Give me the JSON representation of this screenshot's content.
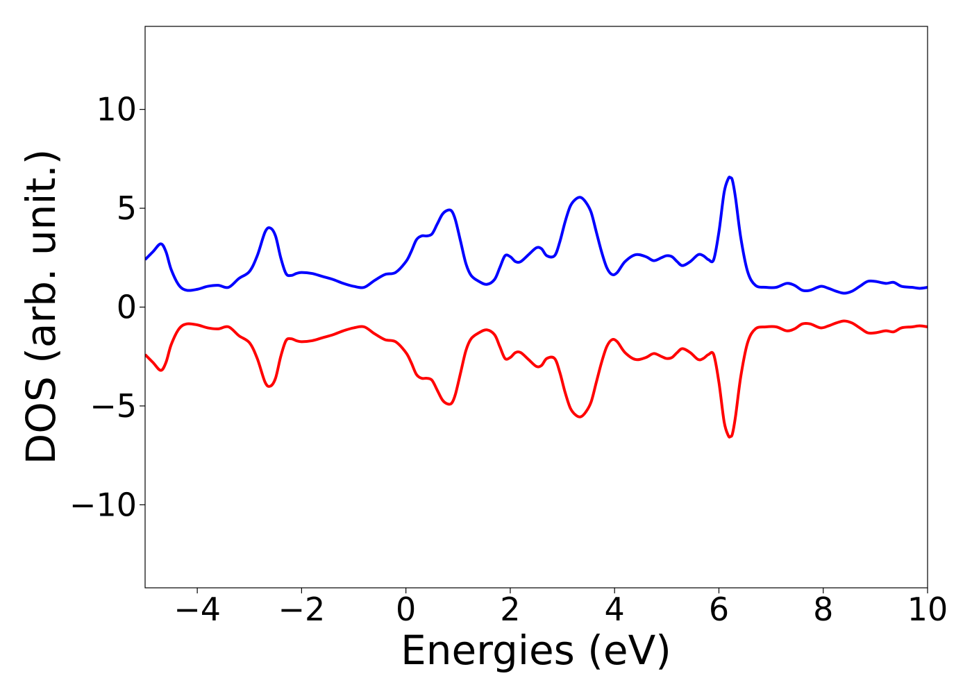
{
  "chart_data": {
    "type": "line",
    "title": "",
    "xlabel": "Energies (eV)",
    "ylabel": "DOS (arb. unit.)",
    "xlim": [
      -5,
      10
    ],
    "ylim": [
      -14.2,
      14.2
    ],
    "grid": false,
    "legend": "none",
    "x_ticks": [
      {
        "value": -4,
        "label": "−4"
      },
      {
        "value": -2,
        "label": "−2"
      },
      {
        "value": 0,
        "label": "0"
      },
      {
        "value": 2,
        "label": "2"
      },
      {
        "value": 4,
        "label": "4"
      },
      {
        "value": 6,
        "label": "6"
      },
      {
        "value": 8,
        "label": "8"
      },
      {
        "value": 10,
        "label": "10"
      }
    ],
    "y_ticks": [
      {
        "value": 10,
        "label": "10"
      },
      {
        "value": 5,
        "label": "5"
      },
      {
        "value": 0,
        "label": "0"
      },
      {
        "value": -5,
        "label": "−5"
      },
      {
        "value": -10,
        "label": "−10"
      }
    ],
    "series": [
      {
        "color": "#0000ff",
        "x": [
          -5.0,
          -4.85,
          -4.7,
          -4.6,
          -4.5,
          -4.35,
          -4.2,
          -4.0,
          -3.8,
          -3.6,
          -3.4,
          -3.2,
          -3.0,
          -2.85,
          -2.7,
          -2.6,
          -2.5,
          -2.4,
          -2.3,
          -2.2,
          -2.1,
          -2.0,
          -1.8,
          -1.6,
          -1.4,
          -1.2,
          -1.0,
          -0.8,
          -0.6,
          -0.4,
          -0.2,
          0.0,
          0.1,
          0.2,
          0.3,
          0.4,
          0.5,
          0.6,
          0.7,
          0.8,
          0.88,
          0.95,
          1.05,
          1.15,
          1.25,
          1.4,
          1.55,
          1.7,
          1.8,
          1.9,
          2.0,
          2.1,
          2.2,
          2.35,
          2.5,
          2.6,
          2.7,
          2.85,
          2.95,
          3.05,
          3.15,
          3.25,
          3.35,
          3.45,
          3.55,
          3.65,
          3.75,
          3.85,
          3.95,
          4.05,
          4.2,
          4.4,
          4.6,
          4.75,
          4.9,
          5.0,
          5.1,
          5.2,
          5.3,
          5.45,
          5.6,
          5.7,
          5.8,
          5.9,
          6.0,
          6.1,
          6.18,
          6.22,
          6.26,
          6.32,
          6.42,
          6.55,
          6.7,
          6.9,
          7.1,
          7.3,
          7.45,
          7.6,
          7.75,
          7.95,
          8.1,
          8.25,
          8.4,
          8.55,
          8.7,
          8.85,
          9.0,
          9.2,
          9.35,
          9.5,
          9.7,
          9.85,
          10.0
        ],
        "y": [
          2.4,
          2.8,
          3.2,
          2.8,
          1.9,
          1.1,
          0.85,
          0.9,
          1.05,
          1.1,
          1.0,
          1.45,
          1.8,
          2.6,
          3.8,
          4.0,
          3.6,
          2.5,
          1.7,
          1.6,
          1.7,
          1.75,
          1.7,
          1.55,
          1.4,
          1.2,
          1.05,
          1.0,
          1.35,
          1.65,
          1.75,
          2.3,
          2.8,
          3.4,
          3.6,
          3.6,
          3.7,
          4.2,
          4.7,
          4.9,
          4.85,
          4.4,
          3.3,
          2.2,
          1.6,
          1.3,
          1.15,
          1.4,
          2.0,
          2.6,
          2.55,
          2.3,
          2.3,
          2.65,
          3.0,
          2.95,
          2.6,
          2.6,
          3.3,
          4.3,
          5.1,
          5.45,
          5.55,
          5.3,
          4.8,
          3.8,
          2.8,
          2.0,
          1.65,
          1.75,
          2.3,
          2.65,
          2.55,
          2.35,
          2.5,
          2.6,
          2.55,
          2.3,
          2.1,
          2.3,
          2.65,
          2.6,
          2.4,
          2.4,
          3.8,
          5.8,
          6.5,
          6.55,
          6.4,
          5.5,
          3.5,
          1.8,
          1.1,
          1.0,
          1.0,
          1.2,
          1.1,
          0.85,
          0.85,
          1.05,
          0.95,
          0.8,
          0.7,
          0.8,
          1.05,
          1.3,
          1.3,
          1.2,
          1.25,
          1.05,
          1.0,
          0.95,
          1.0
        ]
      },
      {
        "color": "#ff0000",
        "x": [
          -5.0,
          -4.85,
          -4.7,
          -4.6,
          -4.5,
          -4.35,
          -4.2,
          -4.0,
          -3.8,
          -3.6,
          -3.4,
          -3.2,
          -3.0,
          -2.85,
          -2.7,
          -2.6,
          -2.5,
          -2.4,
          -2.3,
          -2.2,
          -2.1,
          -2.0,
          -1.8,
          -1.6,
          -1.4,
          -1.2,
          -1.0,
          -0.8,
          -0.6,
          -0.4,
          -0.2,
          0.0,
          0.1,
          0.2,
          0.3,
          0.4,
          0.5,
          0.6,
          0.7,
          0.8,
          0.88,
          0.95,
          1.05,
          1.15,
          1.25,
          1.4,
          1.55,
          1.7,
          1.8,
          1.9,
          2.0,
          2.1,
          2.2,
          2.35,
          2.5,
          2.6,
          2.7,
          2.85,
          2.95,
          3.05,
          3.15,
          3.25,
          3.35,
          3.45,
          3.55,
          3.65,
          3.75,
          3.85,
          3.95,
          4.05,
          4.2,
          4.4,
          4.6,
          4.75,
          4.9,
          5.0,
          5.1,
          5.2,
          5.3,
          5.45,
          5.6,
          5.7,
          5.8,
          5.9,
          6.0,
          6.1,
          6.18,
          6.22,
          6.26,
          6.32,
          6.42,
          6.55,
          6.7,
          6.9,
          7.1,
          7.3,
          7.45,
          7.6,
          7.75,
          7.95,
          8.1,
          8.25,
          8.4,
          8.55,
          8.7,
          8.85,
          9.0,
          9.2,
          9.35,
          9.5,
          9.7,
          9.85,
          10.0
        ],
        "y": [
          -2.4,
          -2.8,
          -3.2,
          -2.8,
          -1.9,
          -1.1,
          -0.85,
          -0.9,
          -1.05,
          -1.1,
          -1.0,
          -1.45,
          -1.8,
          -2.6,
          -3.8,
          -4.0,
          -3.6,
          -2.5,
          -1.7,
          -1.6,
          -1.7,
          -1.75,
          -1.7,
          -1.55,
          -1.4,
          -1.2,
          -1.05,
          -1.0,
          -1.35,
          -1.65,
          -1.75,
          -2.3,
          -2.8,
          -3.4,
          -3.6,
          -3.6,
          -3.7,
          -4.2,
          -4.7,
          -4.9,
          -4.85,
          -4.4,
          -3.3,
          -2.2,
          -1.6,
          -1.3,
          -1.15,
          -1.4,
          -2.0,
          -2.6,
          -2.55,
          -2.3,
          -2.3,
          -2.65,
          -3.0,
          -2.95,
          -2.6,
          -2.6,
          -3.3,
          -4.3,
          -5.1,
          -5.45,
          -5.55,
          -5.3,
          -4.8,
          -3.8,
          -2.8,
          -2.0,
          -1.65,
          -1.75,
          -2.3,
          -2.65,
          -2.55,
          -2.35,
          -2.5,
          -2.6,
          -2.55,
          -2.3,
          -2.1,
          -2.3,
          -2.65,
          -2.6,
          -2.4,
          -2.4,
          -3.8,
          -5.8,
          -6.5,
          -6.55,
          -6.4,
          -5.5,
          -3.5,
          -1.8,
          -1.1,
          -1.0,
          -1.0,
          -1.2,
          -1.1,
          -0.85,
          -0.85,
          -1.05,
          -0.95,
          -0.8,
          -0.7,
          -0.8,
          -1.05,
          -1.3,
          -1.3,
          -1.2,
          -1.25,
          -1.05,
          -1.0,
          -0.95,
          -1.0
        ]
      }
    ]
  }
}
